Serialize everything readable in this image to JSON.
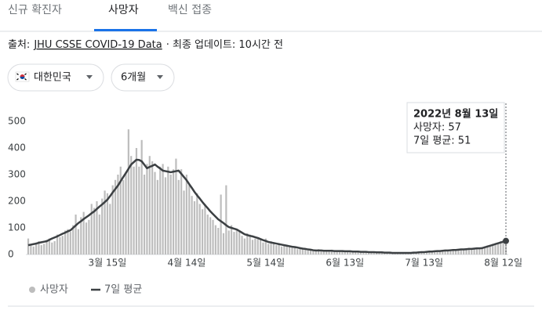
{
  "tabs": [
    "신규 확진자",
    "사망자",
    "백신 접종"
  ],
  "active_tab": 1,
  "source": {
    "label": "출처:",
    "link": "JHU CSSE COVID-19 Data",
    "updated": "· 최종 업데이트: 10시간 전"
  },
  "filters": [
    "대한민국",
    "6개월"
  ],
  "chart_data": {
    "type": "bar",
    "categories": [
      null,
      null,
      null,
      null,
      null,
      null,
      null,
      null,
      null,
      null,
      null,
      null,
      null,
      null,
      null,
      null,
      null,
      null,
      null,
      null,
      null,
      null,
      null,
      null,
      null,
      null,
      null,
      null,
      null,
      null,
      "3월 15일",
      null,
      null,
      null,
      null,
      null,
      null,
      null,
      null,
      null,
      null,
      null,
      null,
      null,
      null,
      null,
      null,
      null,
      null,
      null,
      null,
      null,
      null,
      null,
      null,
      null,
      null,
      null,
      null,
      null,
      "4월 14일",
      null,
      null,
      null,
      null,
      null,
      null,
      null,
      null,
      null,
      null,
      null,
      null,
      null,
      null,
      null,
      null,
      null,
      null,
      null,
      null,
      null,
      null,
      null,
      null,
      null,
      null,
      null,
      null,
      null,
      "5월 14일",
      null,
      null,
      null,
      null,
      null,
      null,
      null,
      null,
      null,
      null,
      null,
      null,
      null,
      null,
      null,
      null,
      null,
      null,
      null,
      null,
      null,
      null,
      null,
      null,
      null,
      null,
      null,
      null,
      null,
      "6월 13일",
      null,
      null,
      null,
      null,
      null,
      null,
      null,
      null,
      null,
      null,
      null,
      null,
      null,
      null,
      null,
      null,
      null,
      null,
      null,
      null,
      null,
      null,
      null,
      null,
      null,
      null,
      null,
      null,
      null,
      "7월 13일",
      null,
      null,
      null,
      null,
      null,
      null,
      null,
      null,
      null,
      null,
      null,
      null,
      null,
      null,
      null,
      null,
      null,
      null,
      null,
      null,
      null,
      null,
      null,
      null,
      null,
      null,
      null,
      null,
      null,
      "8월 12일",
      null
    ],
    "series": [
      {
        "name": "사망자",
        "color": "#bdbdbd",
        "values": [
          60,
          40,
          30,
          45,
          50,
          35,
          40,
          55,
          60,
          45,
          50,
          75,
          65,
          70,
          90,
          95,
          85,
          110,
          150,
          95,
          140,
          160,
          120,
          130,
          190,
          175,
          200,
          150,
          210,
          240,
          230,
          190,
          260,
          280,
          300,
          330,
          280,
          310,
          470,
          370,
          330,
          400,
          330,
          430,
          300,
          340,
          370,
          350,
          310,
          280,
          330,
          340,
          290,
          330,
          300,
          320,
          360,
          280,
          320,
          240,
          300,
          260,
          220,
          200,
          230,
          190,
          170,
          190,
          150,
          140,
          130,
          110,
          100,
          225,
          80,
          260,
          90,
          110,
          85,
          95,
          90,
          70,
          60,
          80,
          75,
          55,
          60,
          65,
          55,
          45,
          60,
          40,
          50,
          45,
          35,
          40,
          30,
          35,
          35,
          30,
          25,
          30,
          20,
          25,
          25,
          20,
          15,
          20,
          15,
          15,
          20,
          15,
          12,
          15,
          14,
          18,
          10,
          12,
          15,
          13,
          10,
          14,
          15,
          10,
          12,
          9,
          11,
          10,
          12,
          8,
          9,
          10,
          7,
          8,
          9,
          6,
          8,
          7,
          5,
          6,
          7,
          5,
          6,
          8,
          5,
          6,
          8,
          6,
          9,
          10,
          8,
          11,
          12,
          10,
          13,
          15,
          12,
          14,
          17,
          14,
          18,
          16,
          19,
          20,
          22,
          18,
          21,
          25,
          20,
          24,
          26,
          22,
          28,
          30,
          34,
          32,
          40,
          38,
          45,
          50,
          55,
          57
        ]
      },
      {
        "name": "7일 평균",
        "type": "line",
        "color": "#3c4043",
        "values": [
          35,
          37,
          39,
          41,
          44,
          46,
          48,
          50,
          55,
          60,
          64,
          68,
          73,
          78,
          82,
          87,
          91,
          100,
          109,
          118,
          125,
          133,
          140,
          147,
          155,
          162,
          171,
          180,
          188,
          197,
          206,
          219,
          233,
          246,
          259,
          275,
          291,
          306,
          322,
          338,
          347,
          356,
          355,
          350,
          337,
          324,
          329,
          333,
          338,
          330,
          323,
          315,
          313,
          311,
          309,
          311,
          313,
          315,
          303,
          291,
          279,
          264,
          250,
          235,
          222,
          210,
          197,
          185,
          174,
          162,
          152,
          142,
          132,
          125,
          118,
          110,
          103,
          100,
          97,
          94,
          88,
          82,
          76,
          73,
          70,
          68,
          65,
          62,
          58,
          54,
          51,
          47,
          45,
          43,
          41,
          39,
          37,
          35,
          33,
          31,
          29,
          28,
          26,
          24,
          22,
          21,
          19,
          18,
          16,
          15,
          15,
          15,
          14,
          14,
          14,
          14,
          13,
          13,
          13,
          13,
          12,
          12,
          12,
          11,
          11,
          11,
          10,
          10,
          10,
          9,
          9,
          9,
          8,
          8,
          8,
          7,
          7,
          7,
          6,
          6,
          6,
          6,
          6,
          6,
          6,
          6,
          7,
          7,
          8,
          9,
          9,
          10,
          11,
          11,
          12,
          13,
          13,
          14,
          15,
          15,
          16,
          17,
          17,
          18,
          19,
          19,
          20,
          21,
          21,
          22,
          23,
          23,
          24,
          27,
          30,
          33,
          36,
          39,
          42,
          45,
          48,
          51
        ]
      }
    ],
    "ylim": [
      0,
      500
    ],
    "yticks": [
      0,
      100,
      200,
      300,
      400,
      500
    ],
    "tooltip": {
      "title": "2022년 8월 13일",
      "lines": [
        "사망자: 57",
        "7일 평균: 51"
      ]
    }
  }
}
